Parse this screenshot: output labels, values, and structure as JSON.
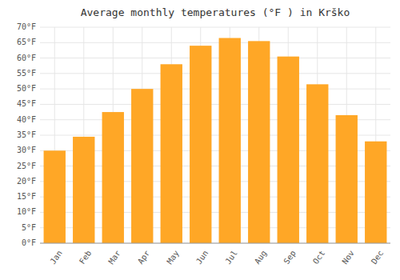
{
  "chart_data": {
    "type": "bar",
    "title": "Average monthly temperatures (°F ) in Krško",
    "categories": [
      "Jan",
      "Feb",
      "Mar",
      "Apr",
      "May",
      "Jun",
      "Jul",
      "Aug",
      "Sep",
      "Oct",
      "Nov",
      "Dec"
    ],
    "values": [
      30,
      34.5,
      42.5,
      50,
      58,
      64,
      66.5,
      65.5,
      60.5,
      51.5,
      41.5,
      33
    ],
    "color": "#FFA726",
    "ylim": [
      0,
      70
    ],
    "yticks": [
      {
        "value": 0,
        "label": "0°F"
      },
      {
        "value": 5,
        "label": "5°F"
      },
      {
        "value": 10,
        "label": "10°F"
      },
      {
        "value": 15,
        "label": "15°F"
      },
      {
        "value": 20,
        "label": "20°F"
      },
      {
        "value": 25,
        "label": "25°F"
      },
      {
        "value": 30,
        "label": "30°F"
      },
      {
        "value": 35,
        "label": "35°F"
      },
      {
        "value": 40,
        "label": "40°F"
      },
      {
        "value": 45,
        "label": "45°F"
      },
      {
        "value": 50,
        "label": "50°F"
      },
      {
        "value": 55,
        "label": "55°F"
      },
      {
        "value": 60,
        "label": "60°F"
      },
      {
        "value": 65,
        "label": "65°F"
      },
      {
        "value": 70,
        "label": "70°F"
      }
    ],
    "grid": true
  }
}
